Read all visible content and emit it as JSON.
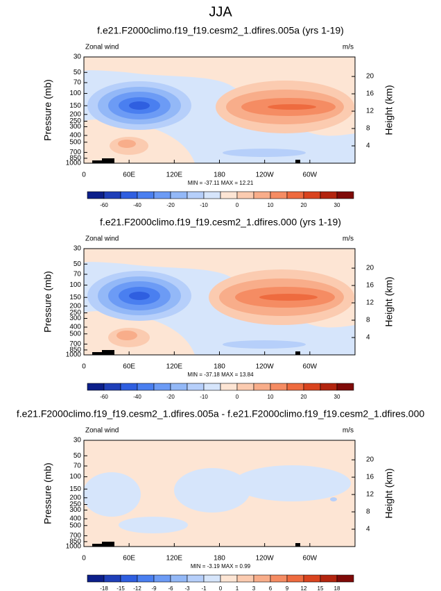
{
  "title": "JJA",
  "chart_data": [
    {
      "type": "contour",
      "title": "f.e21.F2000climo.f19_f19.cesm2_1.dfires.005a (yrs 1-19)",
      "left_label": "Zonal wind",
      "right_label": "m/s",
      "ylabel": "Pressure (mb)",
      "y2label": "Height (km)",
      "log_y": true,
      "ylim": [
        1000,
        30
      ],
      "yticks": [
        30,
        50,
        70,
        100,
        150,
        200,
        250,
        300,
        400,
        500,
        700,
        850,
        1000
      ],
      "y2lim": [
        0,
        24.5
      ],
      "y2ticks": [
        4,
        8,
        12,
        16,
        20
      ],
      "xlim": [
        0,
        360
      ],
      "xticks": [
        0,
        {
          "value": 60,
          "label": "60E"
        },
        {
          "value": 120,
          "label": "120E"
        },
        180,
        {
          "value": 240,
          "label": "120W"
        },
        {
          "value": 300,
          "label": "60W"
        }
      ],
      "min_max": "MIN = -37.11  MAX = 12.21",
      "colorbar": {
        "colors": [
          "#0c1f8a",
          "#1f3fb8",
          "#2f5fe0",
          "#4a7ff0",
          "#6c9bf5",
          "#93b8f7",
          "#b6cffa",
          "#d6e5fb",
          "#fde5d4",
          "#fbcbb0",
          "#f8ad8a",
          "#f58c63",
          "#ee6b3f",
          "#d9441f",
          "#b3250f",
          "#7f0a08"
        ],
        "labels": [
          -60,
          -40,
          -20,
          -10,
          0,
          10,
          20,
          30
        ],
        "label_step": 2
      }
    },
    {
      "type": "contour",
      "title": "f.e21.F2000climo.f19_f19.cesm2_1.dfires.000 (yrs 1-19)",
      "left_label": "Zonal wind",
      "right_label": "m/s",
      "ylabel": "Pressure (mb)",
      "y2label": "Height (km)",
      "log_y": true,
      "ylim": [
        1000,
        30
      ],
      "yticks": [
        30,
        50,
        70,
        100,
        150,
        200,
        250,
        300,
        400,
        500,
        700,
        850,
        1000
      ],
      "y2lim": [
        0,
        24.5
      ],
      "y2ticks": [
        4,
        8,
        12,
        16,
        20
      ],
      "xlim": [
        0,
        360
      ],
      "xticks": [
        0,
        {
          "value": 60,
          "label": "60E"
        },
        {
          "value": 120,
          "label": "120E"
        },
        180,
        {
          "value": 240,
          "label": "120W"
        },
        {
          "value": 300,
          "label": "60W"
        }
      ],
      "min_max": "MIN = -37.18  MAX = 13.84",
      "colorbar": {
        "colors": [
          "#0c1f8a",
          "#1f3fb8",
          "#2f5fe0",
          "#4a7ff0",
          "#6c9bf5",
          "#93b8f7",
          "#b6cffa",
          "#d6e5fb",
          "#fde5d4",
          "#fbcbb0",
          "#f8ad8a",
          "#f58c63",
          "#ee6b3f",
          "#d9441f",
          "#b3250f",
          "#7f0a08"
        ],
        "labels": [
          -60,
          -40,
          -20,
          -10,
          0,
          10,
          20,
          30
        ],
        "label_step": 2
      }
    },
    {
      "type": "contour",
      "title": "f.e21.F2000climo.f19_f19.cesm2_1.dfires.005a - f.e21.F2000climo.f19_f19.cesm2_1.dfires.000",
      "left_label": "Zonal wind",
      "right_label": "m/s",
      "ylabel": "Pressure (mb)",
      "y2label": "Height (km)",
      "log_y": true,
      "ylim": [
        1000,
        30
      ],
      "yticks": [
        30,
        50,
        70,
        100,
        150,
        200,
        250,
        300,
        400,
        500,
        700,
        850,
        1000
      ],
      "y2lim": [
        0,
        24.5
      ],
      "y2ticks": [
        4,
        8,
        12,
        16,
        20
      ],
      "xlim": [
        0,
        360
      ],
      "xticks": [
        0,
        {
          "value": 60,
          "label": "60E"
        },
        {
          "value": 120,
          "label": "120E"
        },
        180,
        {
          "value": 240,
          "label": "120W"
        },
        {
          "value": 300,
          "label": "60W"
        }
      ],
      "min_max": "MIN = -3.19  MAX = 0.99",
      "colorbar": {
        "colors": [
          "#0c1f8a",
          "#1f3fb8",
          "#2f5fe0",
          "#4a7ff0",
          "#6c9bf5",
          "#93b8f7",
          "#b6cffa",
          "#d6e5fb",
          "#fde5d4",
          "#fbcbb0",
          "#f8ad8a",
          "#f58c63",
          "#ee6b3f",
          "#d9441f",
          "#b3250f",
          "#7f0a08"
        ],
        "labels": [
          -18,
          -15,
          -12,
          -9,
          -6,
          -3,
          -1,
          0,
          1,
          3,
          6,
          9,
          12,
          15,
          18
        ],
        "label_step": 1
      }
    }
  ]
}
